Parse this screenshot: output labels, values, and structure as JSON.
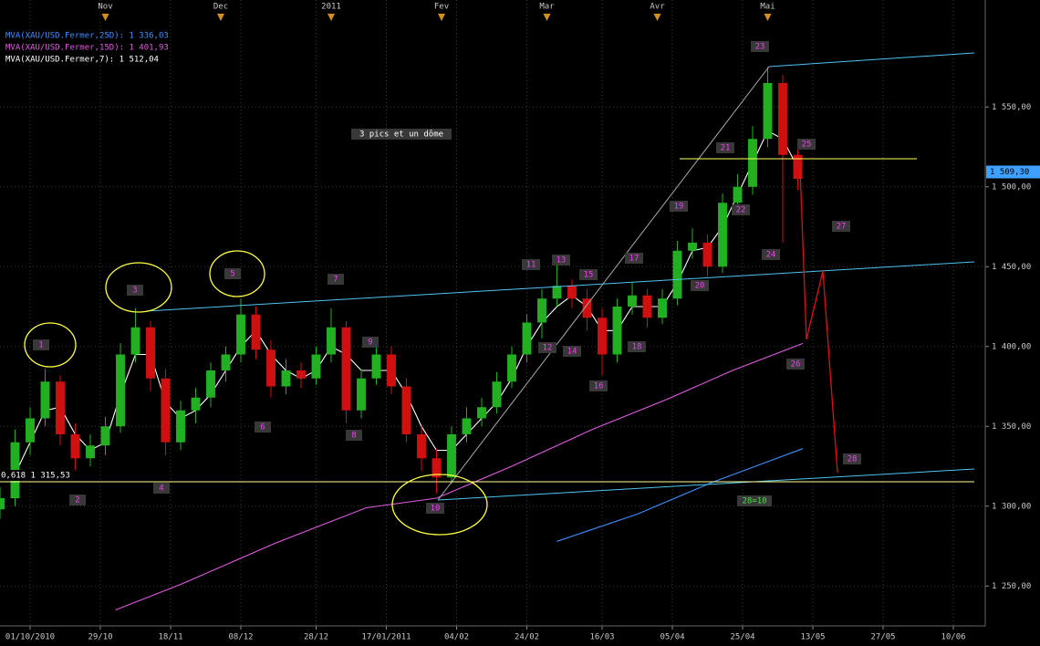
{
  "chart_data": {
    "type": "candlestick",
    "x": [
      0,
      3,
      6,
      9,
      12,
      15,
      18,
      21,
      24,
      27,
      30,
      33,
      36,
      39,
      42,
      45,
      48,
      51,
      54,
      57,
      60,
      63,
      66,
      69,
      72,
      75,
      78,
      81,
      84,
      87,
      90,
      93,
      96,
      99,
      102,
      105,
      108,
      111,
      114,
      117,
      120,
      123,
      126,
      129,
      132,
      135,
      138,
      141,
      144,
      147,
      150,
      153,
      156,
      159
    ],
    "open": [
      1298,
      1305,
      1340,
      1355,
      1378,
      1345,
      1330,
      1338,
      1350,
      1395,
      1412,
      1380,
      1340,
      1360,
      1368,
      1385,
      1395,
      1420,
      1398,
      1375,
      1385,
      1380,
      1395,
      1412,
      1360,
      1380,
      1395,
      1375,
      1345,
      1330,
      1318,
      1345,
      1355,
      1362,
      1378,
      1395,
      1415,
      1430,
      1438,
      1430,
      1418,
      1395,
      1425,
      1432,
      1418,
      1430,
      1460,
      1465,
      1450,
      1490,
      1500,
      1530,
      1565,
      1520
    ],
    "high": [
      1312,
      1348,
      1362,
      1386,
      1382,
      1352,
      1345,
      1356,
      1402,
      1424,
      1416,
      1386,
      1366,
      1374,
      1390,
      1400,
      1430,
      1425,
      1404,
      1392,
      1390,
      1400,
      1424,
      1416,
      1386,
      1402,
      1400,
      1380,
      1350,
      1336,
      1350,
      1362,
      1368,
      1384,
      1400,
      1420,
      1436,
      1451,
      1442,
      1436,
      1424,
      1430,
      1440,
      1436,
      1436,
      1466,
      1474,
      1470,
      1496,
      1508,
      1538,
      1575,
      1570,
      1525
    ],
    "low": [
      1292,
      1300,
      1332,
      1350,
      1338,
      1322,
      1325,
      1332,
      1346,
      1390,
      1372,
      1332,
      1335,
      1352,
      1362,
      1378,
      1390,
      1392,
      1368,
      1370,
      1374,
      1376,
      1390,
      1352,
      1355,
      1376,
      1370,
      1340,
      1322,
      1308,
      1314,
      1340,
      1350,
      1358,
      1374,
      1390,
      1405,
      1425,
      1424,
      1410,
      1382,
      1390,
      1420,
      1412,
      1414,
      1426,
      1455,
      1444,
      1446,
      1484,
      1495,
      1525,
      1465,
      1498
    ],
    "close": [
      1305,
      1340,
      1355,
      1378,
      1345,
      1330,
      1338,
      1350,
      1395,
      1412,
      1380,
      1340,
      1360,
      1368,
      1385,
      1395,
      1420,
      1398,
      1375,
      1385,
      1380,
      1395,
      1412,
      1360,
      1380,
      1395,
      1375,
      1345,
      1330,
      1318,
      1345,
      1355,
      1362,
      1378,
      1395,
      1415,
      1430,
      1438,
      1430,
      1418,
      1395,
      1425,
      1432,
      1418,
      1430,
      1460,
      1465,
      1450,
      1490,
      1500,
      1530,
      1565,
      1520,
      1505
    ],
    "up_color": "#22b022",
    "down_color": "#d01010",
    "series": [
      {
        "name": "MVA(XAU/USD.Fermer,25D): 1 336,03",
        "color": "#3f8fff",
        "x": [
          111,
          127,
          142,
          160
        ],
        "values": [
          1278,
          1295,
          1315,
          1336.03
        ]
      },
      {
        "name": "MVA(XAU/USD.Fermer,15D): 1 401,93",
        "color": "#e05ce0",
        "x": [
          23,
          36,
          55,
          73,
          87,
          102,
          118,
          133,
          146,
          160
        ],
        "values": [
          1235,
          1251,
          1277,
          1299,
          1305,
          1325,
          1348,
          1367,
          1385,
          1401.93
        ]
      },
      {
        "name": "MVA(XAU/USD.Fermer,7): 1 512,04",
        "color": "#ffffff",
        "x": [
          3,
          6,
          9,
          12,
          15,
          18,
          21,
          24,
          27,
          30,
          33,
          36,
          39,
          42,
          45,
          48,
          51,
          54,
          57,
          60,
          63,
          66,
          69,
          72,
          75,
          78,
          81,
          84,
          87,
          90,
          93,
          96,
          99,
          102,
          105,
          108,
          111,
          114,
          117,
          120,
          123,
          126,
          129,
          132,
          135,
          138,
          141,
          144,
          147,
          150,
          153,
          156,
          159
        ],
        "values": [
          1320,
          1340,
          1360,
          1362,
          1345,
          1335,
          1340,
          1370,
          1395,
          1395,
          1365,
          1355,
          1360,
          1370,
          1385,
          1400,
          1410,
          1395,
          1385,
          1380,
          1385,
          1400,
          1395,
          1385,
          1385,
          1385,
          1370,
          1350,
          1335,
          1335,
          1345,
          1355,
          1365,
          1380,
          1400,
          1415,
          1425,
          1432,
          1425,
          1410,
          1410,
          1425,
          1425,
          1425,
          1440,
          1460,
          1462,
          1475,
          1495,
          1515,
          1535,
          1530,
          1512.04
        ]
      }
    ],
    "xlim": [
      0,
      196
    ],
    "xticks": [
      {
        "value": 6,
        "label": "01/10/2010"
      },
      {
        "value": 20,
        "label": "29/10"
      },
      {
        "value": 34,
        "label": "18/11"
      },
      {
        "value": 48,
        "label": "08/12"
      },
      {
        "value": 63,
        "label": "28/12"
      },
      {
        "value": 77,
        "label": "17/01/2011"
      },
      {
        "value": 91,
        "label": "04/02"
      },
      {
        "value": 105,
        "label": "24/02"
      },
      {
        "value": 120,
        "label": "16/03"
      },
      {
        "value": 134,
        "label": "05/04"
      },
      {
        "value": 148,
        "label": "25/04"
      },
      {
        "value": 162,
        "label": "13/05"
      },
      {
        "value": 176,
        "label": "27/05"
      },
      {
        "value": 190,
        "label": "10/06"
      }
    ],
    "top_ticks": [
      {
        "value": 21,
        "label": "Nov"
      },
      {
        "value": 44,
        "label": "Dec"
      },
      {
        "value": 66,
        "label": "2011"
      },
      {
        "value": 88,
        "label": "Fev"
      },
      {
        "value": 109,
        "label": "Mar"
      },
      {
        "value": 131,
        "label": "Avr"
      },
      {
        "value": 153,
        "label": "Mai"
      }
    ],
    "ylim": [
      1225,
      1617
    ],
    "yticks": [
      {
        "value": 1250,
        "label": "1 250,00"
      },
      {
        "value": 1300,
        "label": "1 300,00"
      },
      {
        "value": 1350,
        "label": "1 350,00"
      },
      {
        "value": 1400,
        "label": "1 400,00"
      },
      {
        "value": 1450,
        "label": "1 450,00"
      },
      {
        "value": 1500,
        "label": "1 500,00"
      },
      {
        "value": 1550,
        "label": "1 550,00"
      }
    ],
    "last_price": {
      "value": 1509.3,
      "label": "1 509,30"
    },
    "grid": true
  },
  "fib_label": "0,618 1 315,53",
  "annotations": [
    "1",
    "2",
    "3",
    "4",
    "5",
    "6",
    "7",
    "8",
    "9",
    "10",
    "11",
    "12",
    "13",
    "14",
    "15",
    "16",
    "17",
    "18",
    "19",
    "20",
    "21",
    "22",
    "23",
    "24",
    "25",
    "26",
    "27",
    "28",
    "28=10",
    "3 pics et un dôme"
  ]
}
